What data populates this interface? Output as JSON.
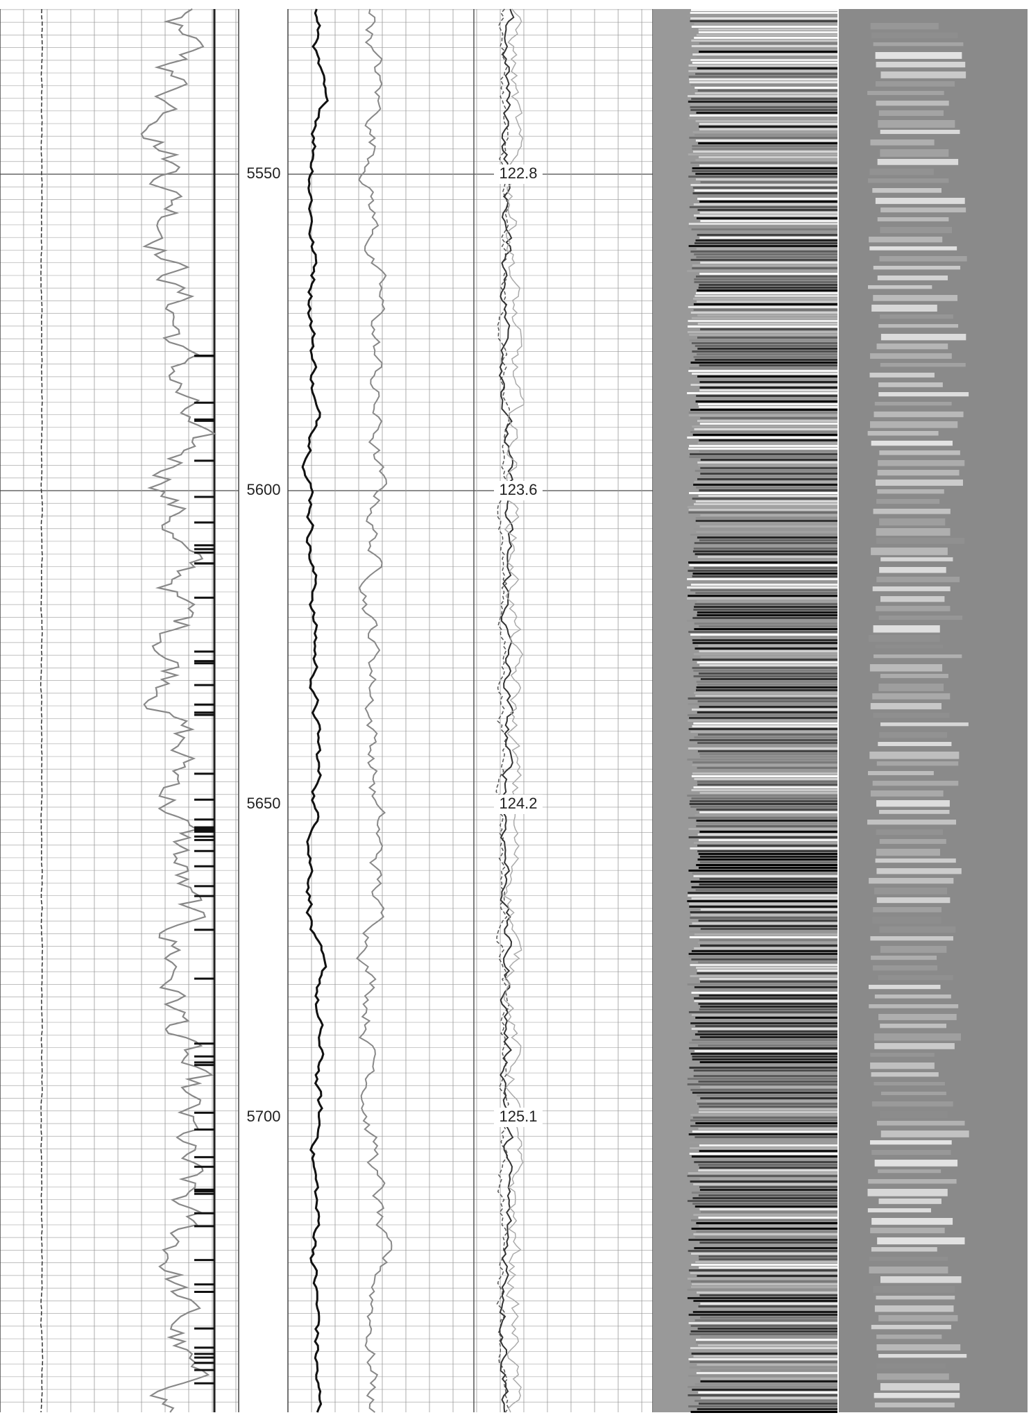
{
  "depth_track": {
    "labels": [
      "5550",
      "5600",
      "5650",
      "5700"
    ]
  },
  "annotations": [
    "122.8",
    "123.6",
    "124.2",
    "125.1"
  ]
}
